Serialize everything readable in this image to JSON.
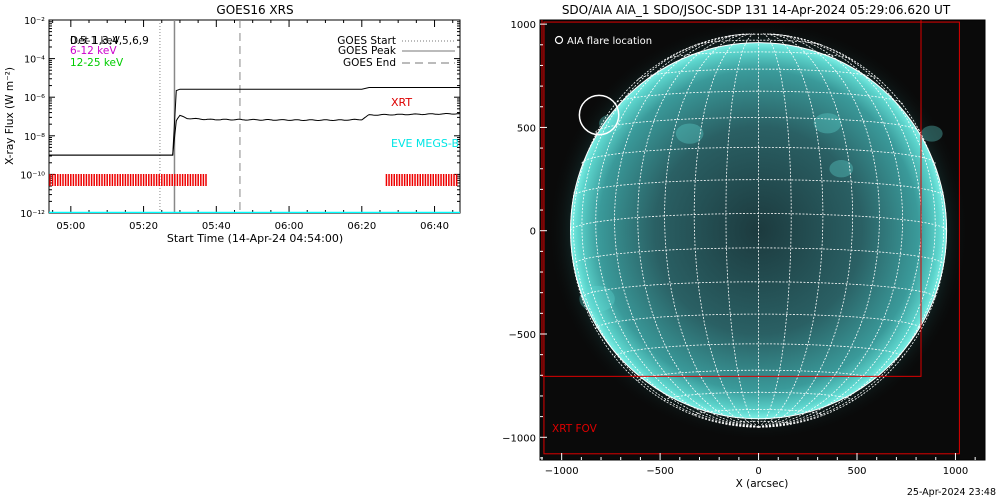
{
  "chart_data": [
    {
      "type": "line",
      "title": "GOES16 XRS",
      "xlabel": "Start Time (14-Apr-24 04:54:00)",
      "ylabel": "X-ray Flux (W m⁻²)",
      "y_scale": "log",
      "ylim": [
        1e-12,
        0.01
      ],
      "xlim_minutes": [
        0,
        113
      ],
      "y_ticks": [
        {
          "value": 1e-12,
          "label": "10⁻¹²"
        },
        {
          "value": 1e-10,
          "label": "10⁻¹⁰"
        },
        {
          "value": 1e-08,
          "label": "10⁻⁸"
        },
        {
          "value": 1e-06,
          "label": "10⁻⁶"
        },
        {
          "value": 0.0001,
          "label": "10⁻⁴"
        },
        {
          "value": 0.01,
          "label": "10⁻²"
        }
      ],
      "x_ticks": [
        {
          "minute": 6,
          "label": "05:00"
        },
        {
          "minute": 26,
          "label": "05:20"
        },
        {
          "minute": 46,
          "label": "05:40"
        },
        {
          "minute": 66,
          "label": "06:00"
        },
        {
          "minute": 86,
          "label": "06:20"
        },
        {
          "minute": 106,
          "label": "06:40"
        }
      ],
      "left_legend": [
        {
          "text": "Det 1,3,4,5,6,9",
          "overprint": "0.5-1 keV",
          "color": "#000000"
        },
        {
          "text": "6-12 keV",
          "color": "#cc00cc"
        },
        {
          "text": "12-25 keV",
          "color": "#00cc00"
        }
      ],
      "right_legend": [
        {
          "text": "GOES Start",
          "style": "dotted"
        },
        {
          "text": "GOES Peak",
          "style": "solid"
        },
        {
          "text": "GOES End",
          "style": "dashed"
        }
      ],
      "event_markers_minutes": {
        "start": 30.5,
        "peak": 34.5,
        "end": 52.5
      },
      "series": [
        {
          "color": "#000000",
          "points": [
            [
              0,
              1e-09
            ],
            [
              34,
              1e-09
            ],
            [
              35,
              2.2e-06
            ],
            [
              36,
              2.6e-06
            ],
            [
              86,
              2.6e-06
            ],
            [
              88,
              3.2e-06
            ],
            [
              113,
              3.2e-06
            ]
          ]
        },
        {
          "color": "#000000",
          "points": [
            [
              0,
              1e-09
            ],
            [
              34,
              1e-09
            ],
            [
              35,
              6e-08
            ],
            [
              36,
              1.1e-07
            ],
            [
              38,
              8e-08
            ],
            [
              44,
              7e-08
            ],
            [
              70,
              6.5e-08
            ],
            [
              80,
              6.5e-08
            ],
            [
              86,
              7e-08
            ],
            [
              88,
              1.2e-07
            ],
            [
              113,
              1.4e-07
            ]
          ]
        },
        {
          "color": "#00ffff",
          "points": [
            [
              0,
              1e-12
            ],
            [
              113,
              1e-12
            ]
          ]
        }
      ],
      "annotations": [
        {
          "text": "XRT",
          "color": "#dd0000"
        },
        {
          "text": "EVE MEGS-B",
          "color": "#00ffff"
        }
      ],
      "xrt_coverage_minutes": [
        [
          0,
          44
        ],
        [
          92.5,
          113
        ]
      ]
    },
    {
      "type": "image",
      "title": "SDO/AIA AIA_1 SDO/JSOC-SDP 131 14-Apr-2024 05:29:06.620 UT",
      "xlabel": "X (arcsec)",
      "ylabel": "",
      "xlim": [
        -1110,
        1150
      ],
      "ylim": [
        -1110,
        1020
      ],
      "x_ticks": [
        -1000,
        -500,
        0,
        500,
        1000
      ],
      "y_ticks": [
        -1000,
        -500,
        0,
        500,
        1000
      ],
      "solar_radius_arcsec": 955,
      "legend": "AIA flare location",
      "flare_location_arcsec": [
        -810,
        560
      ],
      "xrt_fov_label": "XRT FOV",
      "xrt_fov_arcsec": [
        [
          -1090,
          -1080,
          1020,
          1010
        ],
        [
          -1100,
          -705,
          825,
          1075
        ]
      ],
      "colors": {
        "disk": "#3cc4c4",
        "limb": "#6fe8e0",
        "grid": "#ffffff",
        "fov": "#dd0000"
      }
    }
  ],
  "footer_timestamp": "25-Apr-2024 23:48"
}
